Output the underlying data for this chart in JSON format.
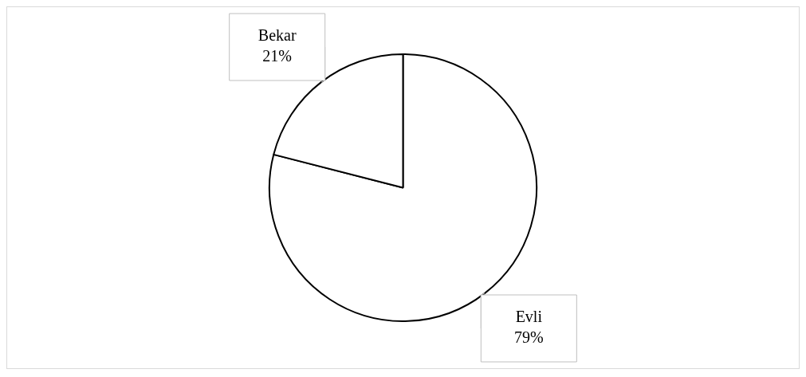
{
  "chart_data": {
    "type": "pie",
    "categories": [
      "Evli",
      "Bekar"
    ],
    "values": [
      79,
      21
    ],
    "colors": [
      "#ffffff",
      "#ffffff"
    ],
    "value_labels": [
      "79%",
      "21%"
    ],
    "legend": false
  }
}
